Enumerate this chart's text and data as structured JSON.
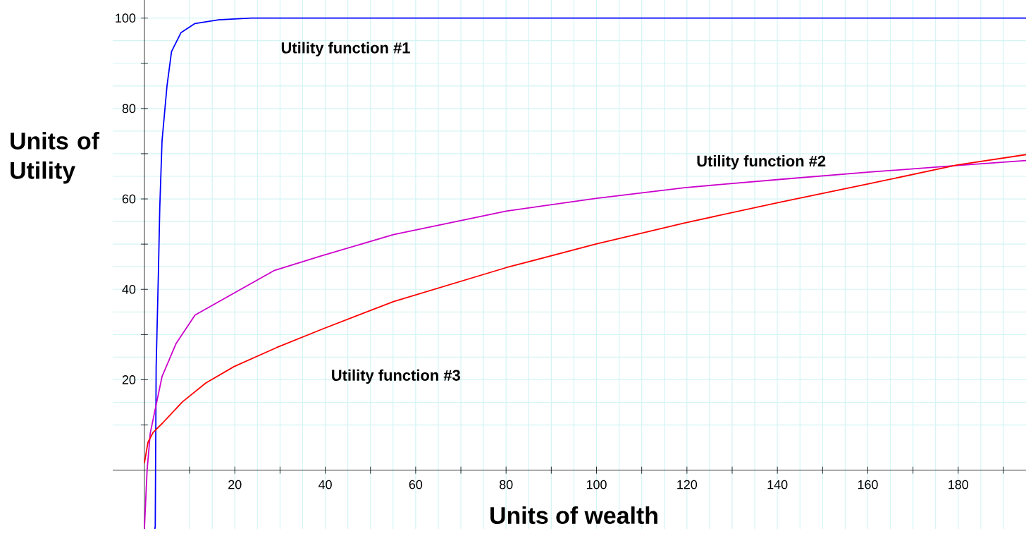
{
  "chart_data": {
    "type": "line",
    "xlabel": "Units of wealth",
    "ylabel": "Units of Utility",
    "xlim": [
      -7,
      195
    ],
    "ylim": [
      -13,
      104
    ],
    "xticks": [
      {
        "value": 10,
        "label": null
      },
      20,
      {
        "value": 30,
        "label": null
      },
      40,
      {
        "value": 50,
        "label": null
      },
      60,
      {
        "value": 70,
        "label": null
      },
      80,
      {
        "value": 90,
        "label": null
      },
      100,
      {
        "value": 110,
        "label": null
      },
      120,
      {
        "value": 130,
        "label": null
      },
      140,
      {
        "value": 150,
        "label": null
      },
      160,
      {
        "value": 170,
        "label": null
      },
      180,
      {
        "value": 190,
        "label": null
      }
    ],
    "yticks": [
      {
        "value": 10,
        "label": null
      },
      20,
      {
        "value": 30,
        "label": null
      },
      40,
      {
        "value": 50,
        "label": null
      },
      60,
      {
        "value": 70,
        "label": null
      },
      80,
      {
        "value": 90,
        "label": null
      },
      100
    ],
    "grid": true,
    "series": [
      {
        "color": "#0000ff",
        "x": [
          2.3,
          2.4,
          2.6,
          3.1,
          3.4,
          3.9,
          5,
          6,
          8.1,
          11.2,
          16.4,
          23.6,
          195
        ],
        "values": [
          -13,
          -12.5,
          22.8,
          43.7,
          58,
          72.8,
          85,
          92.6,
          96.8,
          98.8,
          99.6,
          100,
          100
        ]
      },
      {
        "color": "#cc00cc",
        "x": [
          0,
          0.6,
          1.3,
          2.4,
          3.9,
          7,
          11.2,
          19.5,
          28.8,
          39.1,
          55.1,
          80,
          99.8,
          119.5,
          140.3,
          160,
          179.8,
          195
        ],
        "values": [
          -13,
          0,
          8.2,
          13.5,
          20.7,
          28,
          34.3,
          39,
          44.2,
          47.4,
          52.1,
          57.3,
          60.1,
          62.5,
          64.3,
          65.9,
          67.4,
          68.5
        ]
      },
      {
        "color": "#ff0000",
        "x": [
          0,
          0.8,
          1.9,
          4,
          8.4,
          13.6,
          19.8,
          29.2,
          39.6,
          55.1,
          80,
          99.8,
          119.5,
          140.3,
          160,
          179.8,
          195
        ],
        "values": [
          1.6,
          6.2,
          8.3,
          10.4,
          15.1,
          19.3,
          22.9,
          27.1,
          31.3,
          37.3,
          44.8,
          50,
          54.7,
          59.2,
          63.3,
          67.5,
          69.8
        ]
      }
    ],
    "annotations": [
      "Utility function #1",
      "Utility function #2",
      "Utility function #3"
    ]
  }
}
